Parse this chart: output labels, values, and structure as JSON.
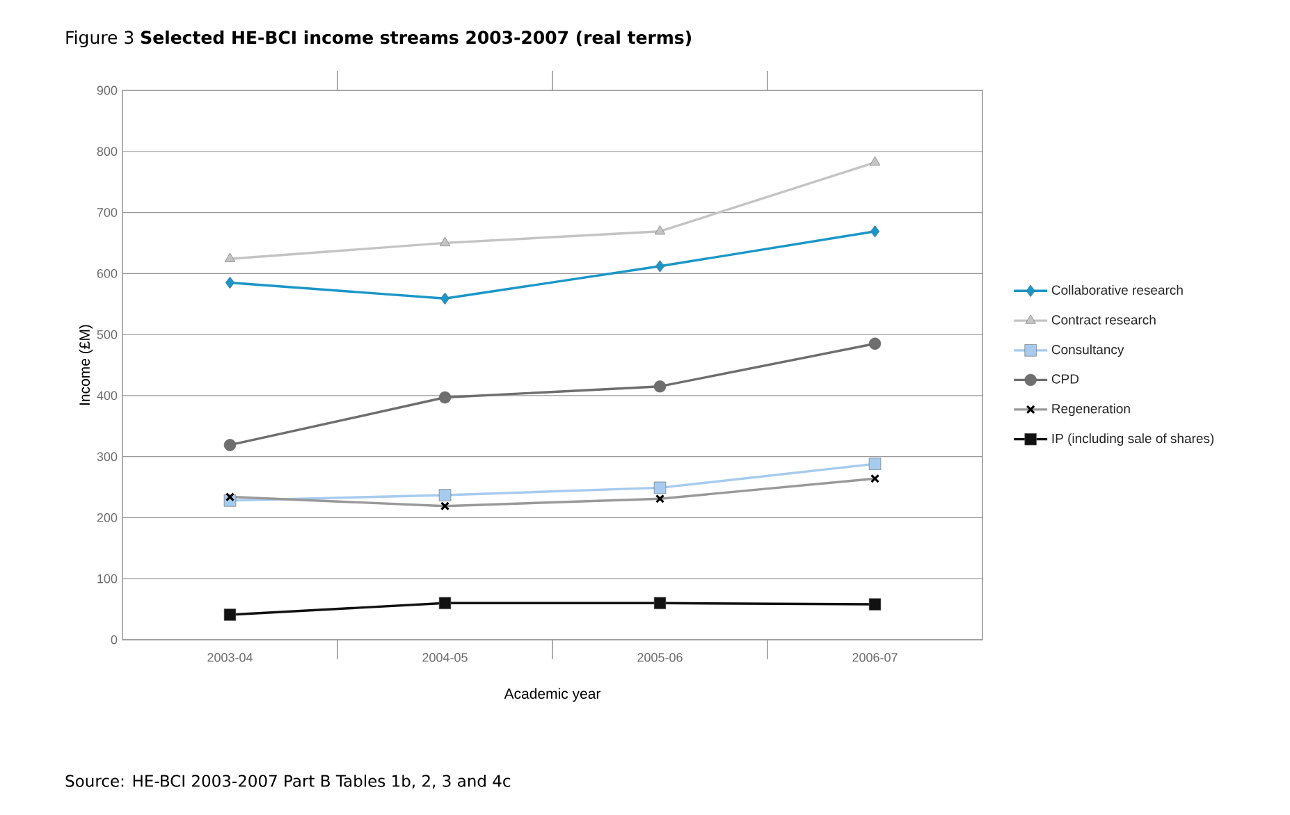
{
  "chart_data": {
    "type": "line",
    "title": "Figure 3 **Selected HE-BCI income streams 2003-2007 (real terms)**",
    "xlabel": "Academic year",
    "ylabel": "Income (£M)",
    "categories": [
      "2003-04",
      "2004-05",
      "2005-06",
      "2006-07"
    ],
    "ylim": [
      0,
      900
    ],
    "yticks": [
      0,
      100,
      200,
      300,
      400,
      500,
      600,
      700,
      800,
      900
    ],
    "grid": "y",
    "legend": "right",
    "series": [
      {
        "name": "Collaborative research",
        "color": "#1a96c8",
        "marker": "diamond",
        "values": [
          585,
          559,
          612,
          669
        ]
      },
      {
        "name": "Contract research",
        "color": "#c4c4c4",
        "marker": "triangle",
        "values": [
          624,
          650,
          669,
          782
        ]
      },
      {
        "name": "Consultancy",
        "color": "#a6cbee",
        "marker": "square",
        "values": [
          228,
          237,
          249,
          288
        ]
      },
      {
        "name": "CPD",
        "color": "#6e6e6e",
        "marker": "circle",
        "values": [
          319,
          397,
          415,
          485
        ]
      },
      {
        "name": "Regeneration",
        "color": "#999999",
        "marker": "cross",
        "values": [
          234,
          219,
          231,
          264
        ]
      },
      {
        "name": "IP (including sale of shares)",
        "color": "#111111",
        "marker": "square",
        "values": [
          41,
          60,
          60,
          58
        ]
      }
    ],
    "annotations": [
      "Source: HE-BCI 2003-2007 Part B Tables 1b, 2, 3 and 4c"
    ]
  }
}
